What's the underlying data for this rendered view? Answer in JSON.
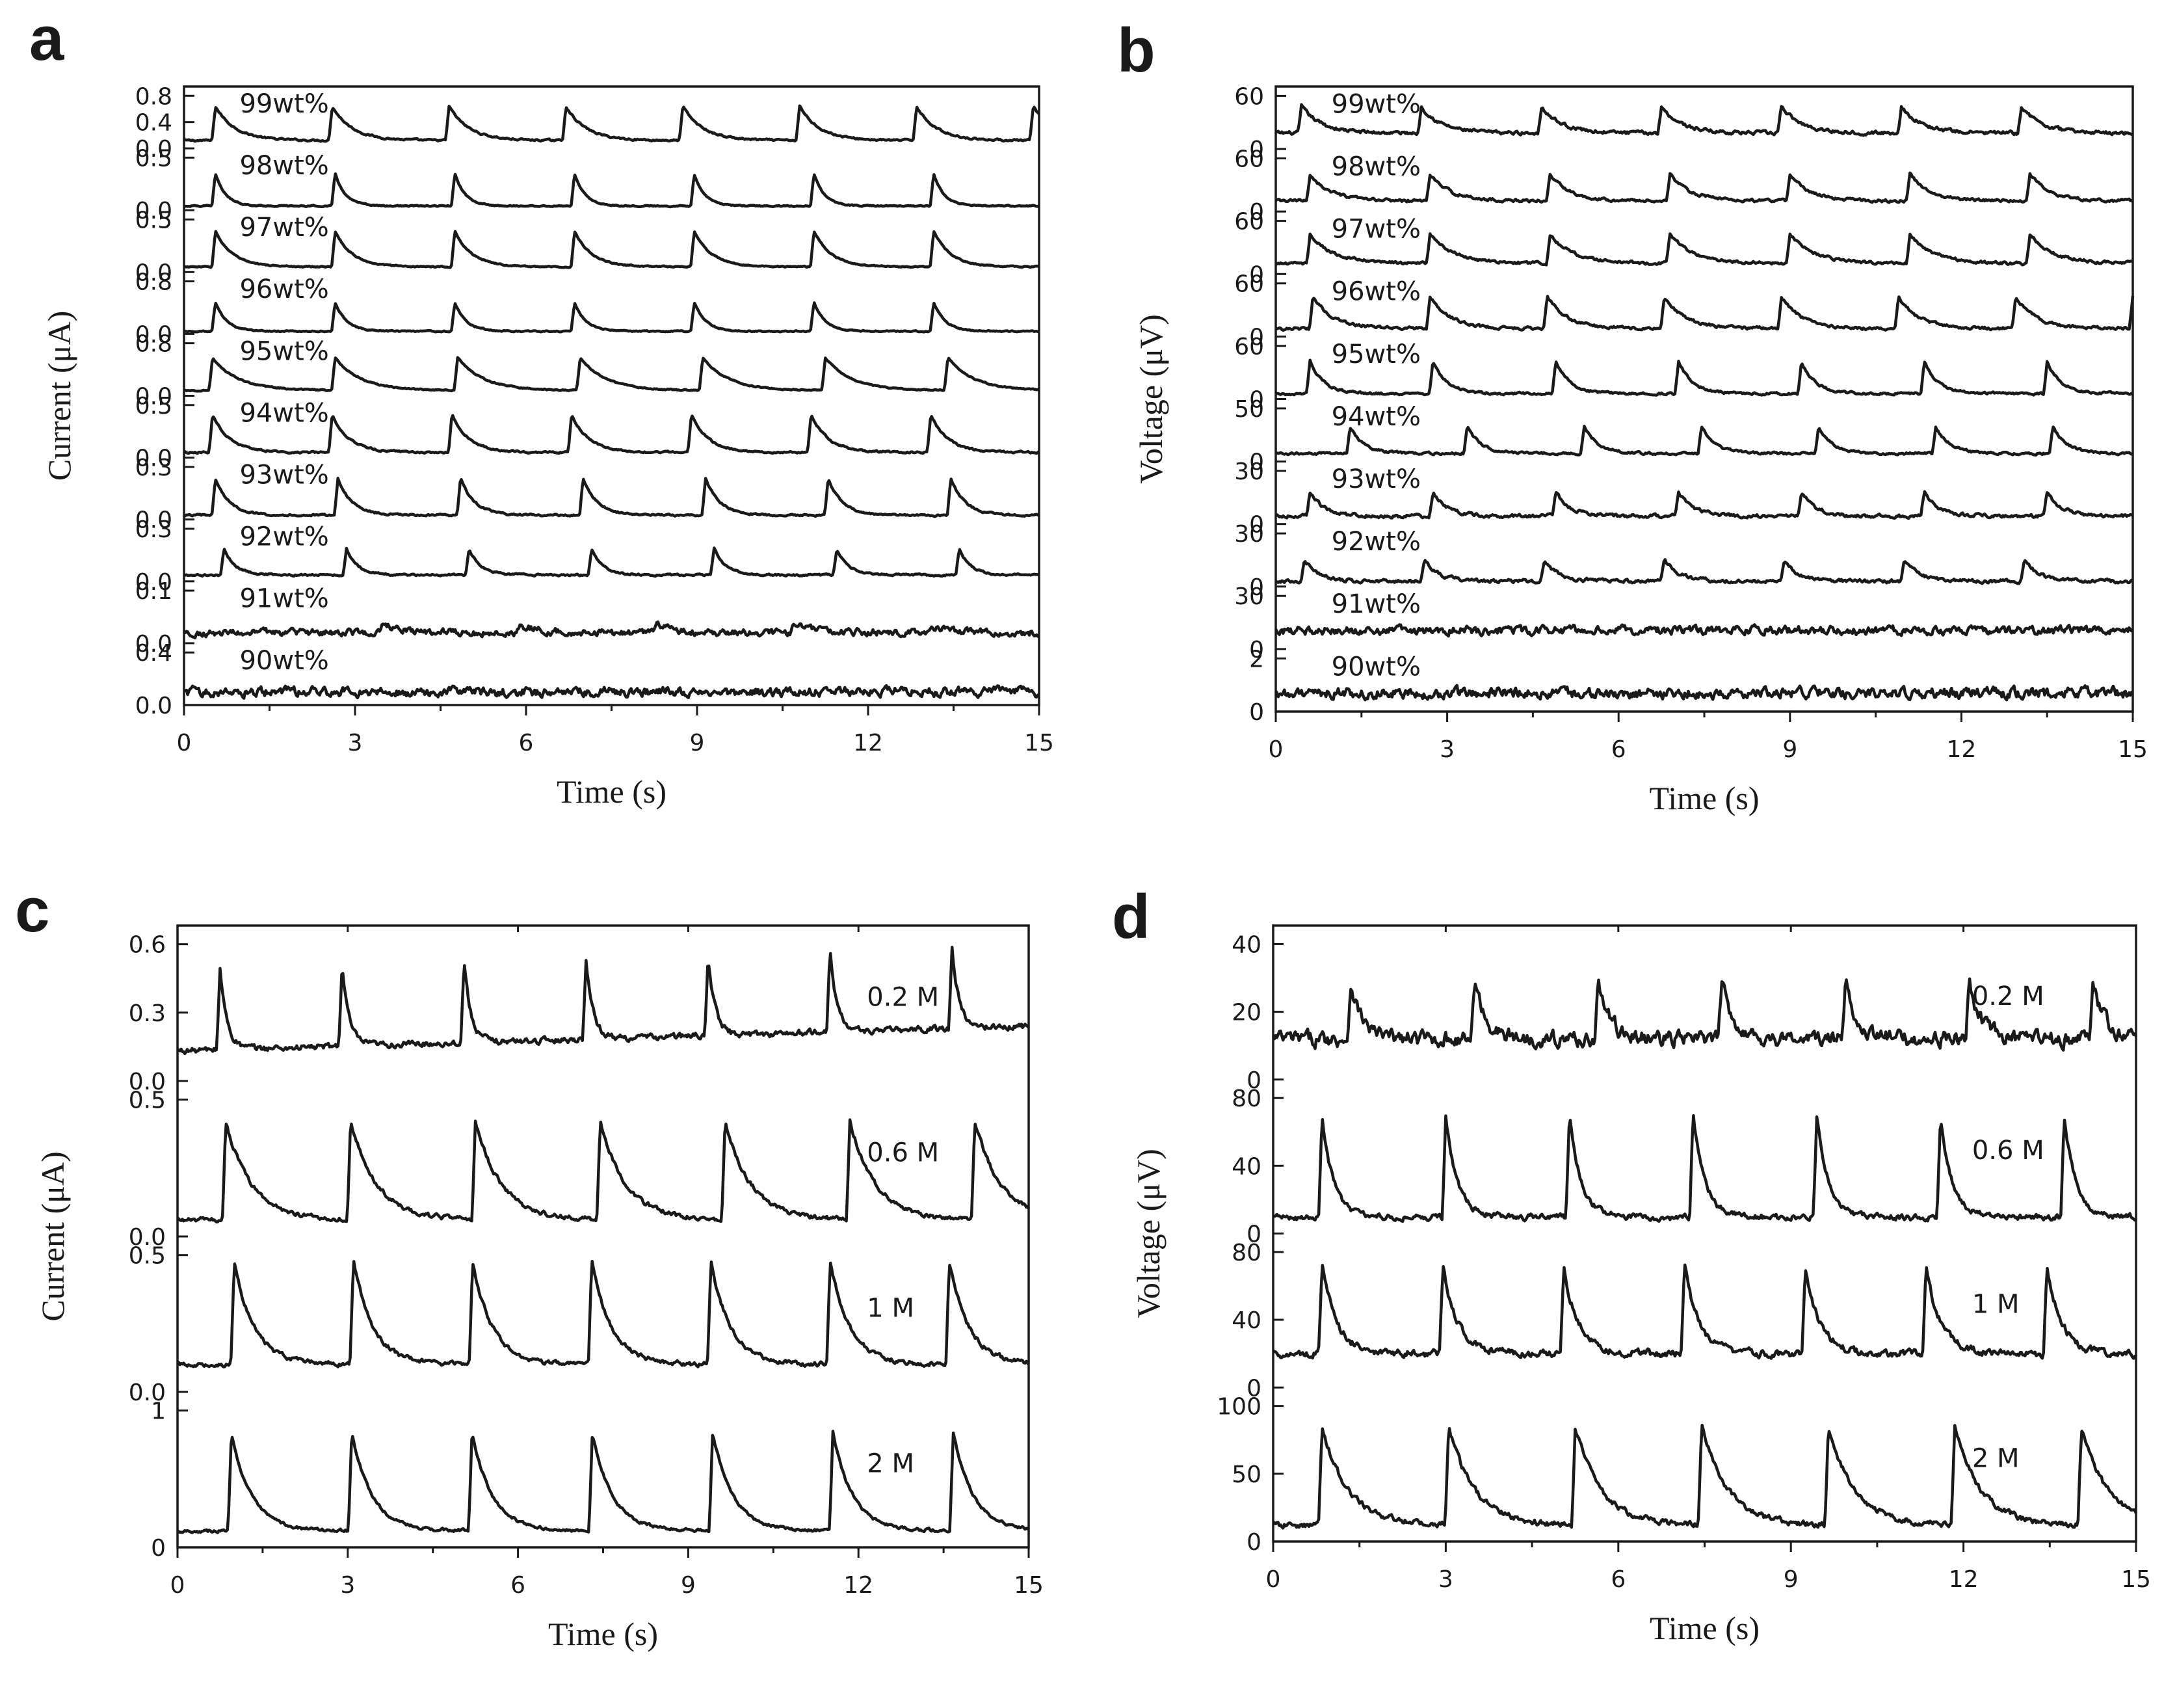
{
  "chart_data": [
    {
      "panel": "a",
      "type": "line",
      "xlabel": "Time (s)",
      "ylabel": "Current (μA)",
      "xlim": [
        0,
        15
      ],
      "xticks": [
        "0",
        "3",
        "6",
        "9",
        "12",
        "15"
      ],
      "series": [
        {
          "name": "99wt%",
          "yticks": [
            "0.8",
            "0.4",
            "0.0"
          ],
          "baseline": 0.15,
          "peak": 0.65,
          "noise": 0.03,
          "width": 0.35,
          "first": 0.55,
          "period": 2.05
        },
        {
          "name": "98wt%",
          "yticks": [
            "0.5",
            "0.0"
          ],
          "baseline": 0.08,
          "peak": 0.62,
          "noise": 0.02,
          "width": 0.18,
          "first": 0.55,
          "period": 2.1
        },
        {
          "name": "97wt%",
          "yticks": [
            "0.5",
            "0.0"
          ],
          "baseline": 0.1,
          "peak": 0.68,
          "noise": 0.02,
          "width": 0.3,
          "first": 0.55,
          "period": 2.1
        },
        {
          "name": "96wt%",
          "yticks": [
            "0.8",
            "0.0"
          ],
          "baseline": 0.05,
          "peak": 0.55,
          "noise": 0.02,
          "width": 0.2,
          "first": 0.55,
          "period": 2.1
        },
        {
          "name": "95wt%",
          "yticks": [
            "0.8",
            "0.0"
          ],
          "baseline": 0.1,
          "peak": 0.62,
          "noise": 0.02,
          "width": 0.45,
          "first": 0.5,
          "period": 2.15
        },
        {
          "name": "94wt%",
          "yticks": [
            "0.5",
            "0.0"
          ],
          "baseline": 0.1,
          "peak": 0.72,
          "noise": 0.03,
          "width": 0.3,
          "first": 0.5,
          "period": 2.1
        },
        {
          "name": "93wt%",
          "yticks": [
            "0.3",
            "0.0"
          ],
          "baseline": 0.08,
          "peak": 0.7,
          "noise": 0.03,
          "width": 0.25,
          "first": 0.55,
          "period": 2.15
        },
        {
          "name": "92wt%",
          "yticks": [
            "0.3",
            "0.0"
          ],
          "baseline": 0.12,
          "peak": 0.5,
          "noise": 0.03,
          "width": 0.2,
          "first": 0.7,
          "period": 2.15
        },
        {
          "name": "91wt%",
          "yticks": [
            "0.1",
            "0.0"
          ],
          "baseline": 0.2,
          "peak": 0.15,
          "noise": 0.12,
          "width": 0.3,
          "first": 3.5,
          "period": 2.4
        },
        {
          "name": "90wt%",
          "yticks": [
            "0.4",
            "0.0"
          ],
          "baseline": 0.25,
          "peak": 0.0,
          "noise": 0.16,
          "width": 0.2,
          "first": 0.5,
          "period": 2.0
        }
      ]
    },
    {
      "panel": "b",
      "type": "line",
      "xlabel": "Time (s)",
      "ylabel": "Voltage (μV)",
      "xlim": [
        0,
        15
      ],
      "xticks": [
        "0",
        "3",
        "6",
        "9",
        "12",
        "15"
      ],
      "series": [
        {
          "name": "99wt%",
          "yticks": [
            "60",
            "0"
          ],
          "baseline": 0.3,
          "peak": 0.5,
          "noise": 0.06,
          "width": 0.35,
          "first": 0.45,
          "period": 2.1
        },
        {
          "name": "98wt%",
          "yticks": [
            "60",
            "0"
          ],
          "baseline": 0.2,
          "peak": 0.5,
          "noise": 0.05,
          "width": 0.35,
          "first": 0.6,
          "period": 2.1
        },
        {
          "name": "97wt%",
          "yticks": [
            "60",
            "0"
          ],
          "baseline": 0.2,
          "peak": 0.55,
          "noise": 0.05,
          "width": 0.4,
          "first": 0.6,
          "period": 2.1
        },
        {
          "name": "96wt%",
          "yticks": [
            "60",
            "0"
          ],
          "baseline": 0.15,
          "peak": 0.6,
          "noise": 0.05,
          "width": 0.35,
          "first": 0.65,
          "period": 2.05
        },
        {
          "name": "95wt%",
          "yticks": [
            "60",
            "0"
          ],
          "baseline": 0.1,
          "peak": 0.6,
          "noise": 0.04,
          "width": 0.25,
          "first": 0.6,
          "period": 2.15
        },
        {
          "name": "94wt%",
          "yticks": [
            "50",
            "0"
          ],
          "baseline": 0.15,
          "peak": 0.5,
          "noise": 0.04,
          "width": 0.25,
          "first": 1.3,
          "period": 2.05
        },
        {
          "name": "93wt%",
          "yticks": [
            "30",
            "0"
          ],
          "baseline": 0.15,
          "peak": 0.45,
          "noise": 0.06,
          "width": 0.25,
          "first": 0.6,
          "period": 2.15
        },
        {
          "name": "92wt%",
          "yticks": [
            "30",
            "0"
          ],
          "baseline": 0.1,
          "peak": 0.4,
          "noise": 0.06,
          "width": 0.25,
          "first": 0.5,
          "period": 2.1
        },
        {
          "name": "91wt%",
          "yticks": [
            "30",
            "0"
          ],
          "baseline": 0.35,
          "peak": 0.0,
          "noise": 0.14,
          "width": 0.2,
          "first": 0.5,
          "period": 2.0
        },
        {
          "name": "90wt%",
          "yticks": [
            "2",
            "0"
          ],
          "baseline": 0.35,
          "peak": 0.0,
          "noise": 0.18,
          "width": 0.2,
          "first": 0.5,
          "period": 2.0
        }
      ]
    },
    {
      "panel": "c",
      "type": "line",
      "xlabel": "Time (s)",
      "ylabel": "Current (μA)",
      "xlim": [
        0,
        15
      ],
      "xticks": [
        "0",
        "3",
        "6",
        "9",
        "12",
        "15"
      ],
      "series": [
        {
          "name": "0.2 M",
          "yticks": [
            "0.6",
            "0.3",
            "0.0"
          ],
          "baseline": 0.22,
          "peak": 0.6,
          "noise": 0.04,
          "width": 0.12,
          "first": 0.75,
          "period": 2.15,
          "drift": 0.18
        },
        {
          "name": "0.6 M",
          "yticks": [
            "0.5",
            "0.0"
          ],
          "baseline": 0.12,
          "peak": 0.72,
          "noise": 0.03,
          "width": 0.45,
          "first": 0.85,
          "period": 2.2
        },
        {
          "name": "1 M",
          "yticks": [
            "0.5",
            "0.0"
          ],
          "baseline": 0.2,
          "peak": 0.75,
          "noise": 0.03,
          "width": 0.35,
          "first": 1.0,
          "period": 2.1
        },
        {
          "name": "2 M",
          "yticks": [
            "1",
            "0"
          ],
          "baseline": 0.12,
          "peak": 0.72,
          "noise": 0.02,
          "width": 0.35,
          "first": 0.95,
          "period": 2.12
        }
      ]
    },
    {
      "panel": "d",
      "type": "line",
      "xlabel": "Time (s)",
      "ylabel": "Voltage (μV)",
      "xlim": [
        0,
        15
      ],
      "xticks": [
        "0",
        "3",
        "6",
        "9",
        "12",
        "15"
      ],
      "series": [
        {
          "name": "0.2 M",
          "yticks": [
            "40",
            "20",
            "0"
          ],
          "baseline": 0.3,
          "peak": 0.42,
          "noise": 0.1,
          "width": 0.2,
          "first": 1.35,
          "period": 2.15
        },
        {
          "name": "0.6 M",
          "yticks": [
            "80",
            "40",
            "0"
          ],
          "baseline": 0.12,
          "peak": 0.75,
          "noise": 0.04,
          "width": 0.2,
          "first": 0.85,
          "period": 2.15
        },
        {
          "name": "1 M",
          "yticks": [
            "80",
            "40",
            "0"
          ],
          "baseline": 0.25,
          "peak": 0.65,
          "noise": 0.05,
          "width": 0.25,
          "first": 0.85,
          "period": 2.1
        },
        {
          "name": "2 M",
          "yticks": [
            "100",
            "50",
            "0"
          ],
          "baseline": 0.12,
          "peak": 0.72,
          "noise": 0.04,
          "width": 0.45,
          "first": 0.85,
          "period": 2.2
        }
      ]
    }
  ]
}
